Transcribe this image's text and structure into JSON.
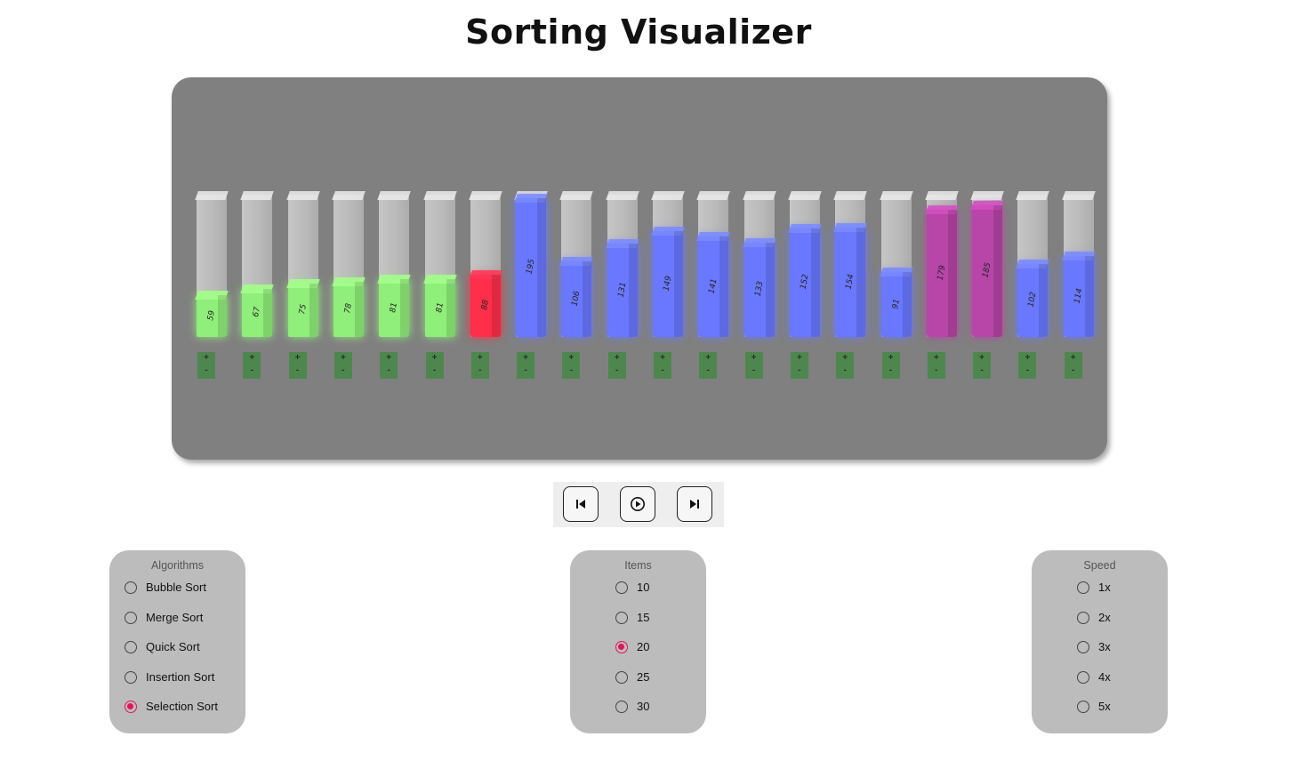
{
  "page": {
    "title": "Sorting Visualizer"
  },
  "colors": {
    "sorted": "#90ee7a",
    "current": "#ff2e4a",
    "unsorted": "#6a78ff",
    "compare": "#b845a8",
    "controls_bg": "#3e8a3e"
  },
  "bars": [
    {
      "value": 59,
      "state": "sorted"
    },
    {
      "value": 67,
      "state": "sorted"
    },
    {
      "value": 75,
      "state": "sorted"
    },
    {
      "value": 78,
      "state": "sorted"
    },
    {
      "value": 81,
      "state": "sorted"
    },
    {
      "value": 81,
      "state": "sorted"
    },
    {
      "value": 88,
      "state": "current"
    },
    {
      "value": 195,
      "state": "unsorted"
    },
    {
      "value": 106,
      "state": "unsorted"
    },
    {
      "value": 131,
      "state": "unsorted"
    },
    {
      "value": 149,
      "state": "unsorted"
    },
    {
      "value": 141,
      "state": "unsorted"
    },
    {
      "value": 133,
      "state": "unsorted"
    },
    {
      "value": 152,
      "state": "unsorted"
    },
    {
      "value": 154,
      "state": "unsorted"
    },
    {
      "value": 91,
      "state": "unsorted"
    },
    {
      "value": 179,
      "state": "compare"
    },
    {
      "value": 185,
      "state": "compare"
    },
    {
      "value": 102,
      "state": "unsorted"
    },
    {
      "value": 114,
      "state": "unsorted"
    }
  ],
  "bar_controls": {
    "increment": "+",
    "decrement": "-"
  },
  "playback": {
    "prev_icon": "skip-back-icon",
    "play_icon": "play-circle-icon",
    "next_icon": "skip-forward-icon"
  },
  "algorithms": {
    "title": "Algorithms",
    "options": [
      "Bubble Sort",
      "Merge Sort",
      "Quick Sort",
      "Insertion Sort",
      "Selection Sort"
    ],
    "selected": "Selection Sort"
  },
  "items": {
    "title": "Items",
    "options": [
      "10",
      "15",
      "20",
      "25",
      "30"
    ],
    "selected": "20"
  },
  "speed": {
    "title": "Speed",
    "options": [
      "1x",
      "2x",
      "3x",
      "4x",
      "5x"
    ],
    "selected": null
  }
}
